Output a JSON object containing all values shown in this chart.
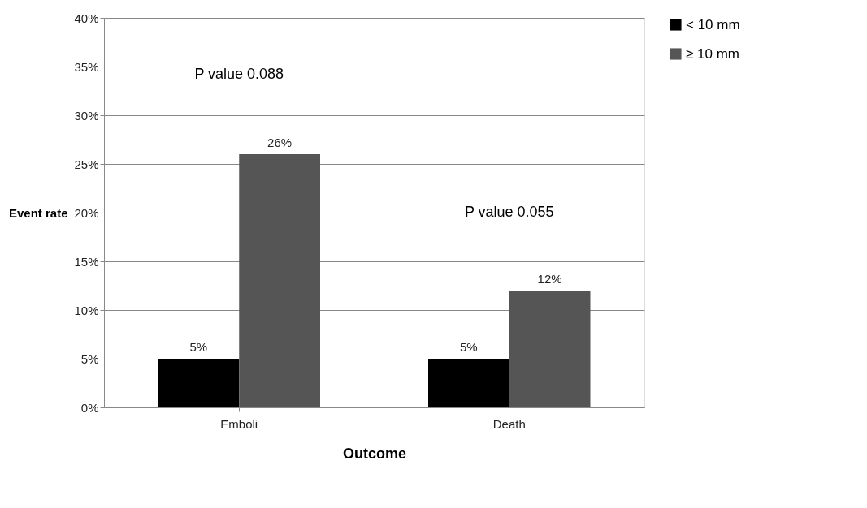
{
  "chart_data": {
    "type": "bar",
    "xlabel": "Outcome",
    "ylabel": "Event rate",
    "categories": [
      "Emboli",
      "Death"
    ],
    "series": [
      {
        "name": "< 10 mm",
        "color": "#000000",
        "values": [
          5,
          5
        ],
        "value_labels": [
          "5%",
          "5%"
        ]
      },
      {
        "name": "≥ 10 mm",
        "color": "#555555",
        "values": [
          26,
          12
        ],
        "value_labels": [
          "26%",
          "12%"
        ]
      }
    ],
    "ylim": [
      0,
      40
    ],
    "yticks": [
      {
        "value": 0,
        "label": "0%"
      },
      {
        "value": 5,
        "label": "5%"
      },
      {
        "value": 10,
        "label": "10%"
      },
      {
        "value": 15,
        "label": "15%"
      },
      {
        "value": 20,
        "label": "20%"
      },
      {
        "value": 25,
        "label": "25%"
      },
      {
        "value": 30,
        "label": "30%"
      },
      {
        "value": 35,
        "label": "35%"
      },
      {
        "value": 40,
        "label": "40%"
      }
    ],
    "annotations": [
      "P value 0.088",
      "P value 0.055"
    ],
    "grid": "y",
    "legend": "right"
  }
}
